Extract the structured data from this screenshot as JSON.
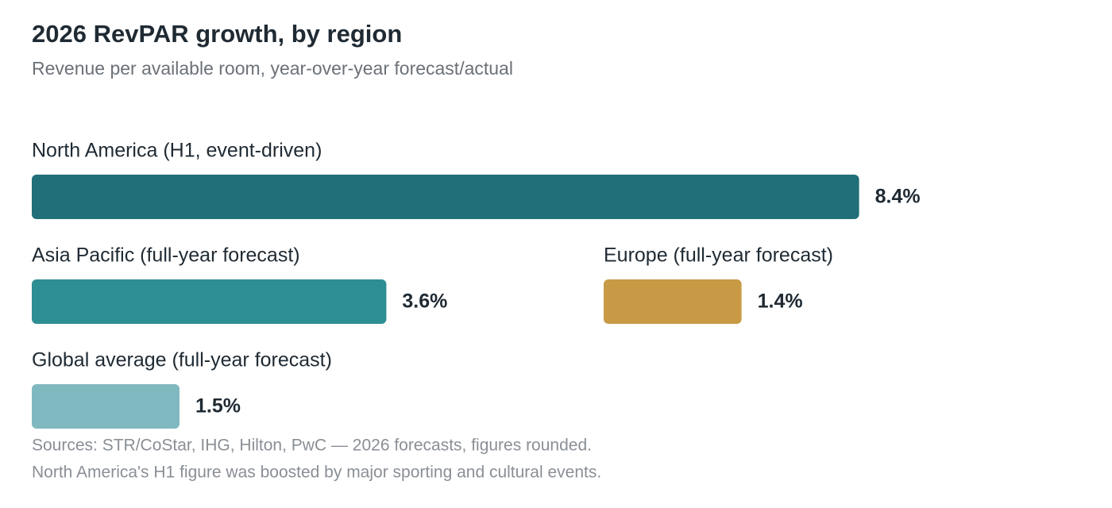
{
  "chart_data": {
    "type": "bar",
    "title": "2026 RevPAR growth, by region",
    "subtitle": "Revenue per available room, year-over-year forecast/actual",
    "categories": [
      "North America (H1, event-driven)",
      "Asia Pacific (full-year forecast)",
      "Europe (full-year forecast)",
      "Global average (full-year forecast)"
    ],
    "values": [
      8.4,
      3.6,
      1.4,
      1.5
    ],
    "value_labels": [
      "8.4%",
      "3.6%",
      "1.4%",
      "1.5%"
    ],
    "colors": [
      "#216f78",
      "#2d8e94",
      "#c89a45",
      "#80b8c0"
    ],
    "notes": [
      "Sources: STR/CoStar, IHG, Hilton, PwC — 2026 forecasts, figures rounded.",
      "North America's H1 figure was boosted by major sporting and cultural events."
    ]
  }
}
